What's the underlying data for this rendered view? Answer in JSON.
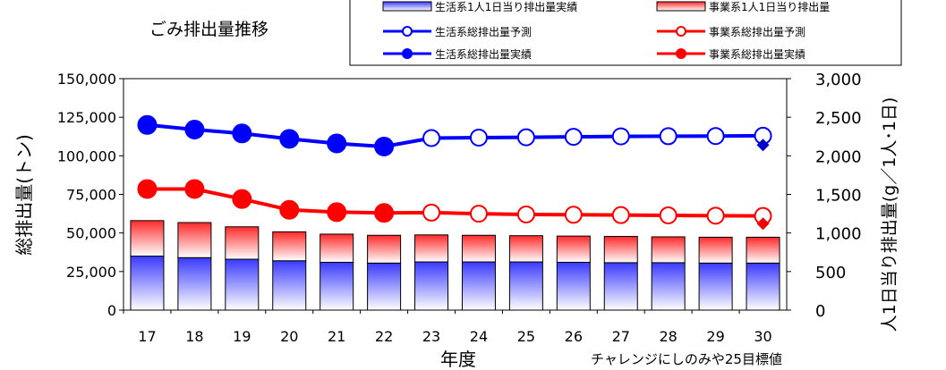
{
  "chart_data": {
    "type": "bar",
    "title": "ごみ排出量推移",
    "xlabel": "年度",
    "ylabel": "総排出量(トン)",
    "y2label": "人1日当り排出量(g／1人･1日)",
    "annotation": "チャレンジにしのみや25目標値",
    "categories": [
      "17",
      "18",
      "19",
      "20",
      "21",
      "22",
      "23",
      "24",
      "25",
      "26",
      "27",
      "28",
      "29",
      "30"
    ],
    "ylim": [
      0,
      150000
    ],
    "y2lim": [
      0,
      3000
    ],
    "yticks": [
      "150,000",
      "125,000",
      "100,000",
      "75,000",
      "50,000",
      "25,000",
      "0"
    ],
    "y2ticks": [
      "3,000",
      "2,500",
      "2,000",
      "1,500",
      "1,000",
      "500",
      "0"
    ],
    "series": [
      {
        "name": "生活系1人1日当り排出量実績",
        "kind": "bar",
        "axis": "right",
        "color": "#3333ff",
        "values": [
          700,
          680,
          660,
          640,
          620,
          610,
          625,
          625,
          625,
          620,
          615,
          615,
          610,
          610
        ]
      },
      {
        "name": "事業系1人1日当り排出量",
        "kind": "bar",
        "axis": "right",
        "color": "#ff3333",
        "values": [
          460,
          455,
          420,
          375,
          365,
          360,
          350,
          345,
          340,
          340,
          340,
          335,
          335,
          335
        ]
      },
      {
        "name": "生活系総排出量予測",
        "kind": "line",
        "marker": "open",
        "axis": "left",
        "color": "#0000ff",
        "values": [
          null,
          null,
          null,
          null,
          null,
          106000,
          111500,
          111800,
          112000,
          112300,
          112600,
          112700,
          112800,
          113000
        ]
      },
      {
        "name": "事業系総排出量予測",
        "kind": "line",
        "marker": "open",
        "axis": "left",
        "color": "#ff0000",
        "values": [
          null,
          null,
          null,
          null,
          null,
          63000,
          63200,
          62500,
          62000,
          61800,
          61600,
          61400,
          61200,
          61000
        ]
      },
      {
        "name": "生活系総排出量実績",
        "kind": "line",
        "marker": "filled",
        "axis": "left",
        "color": "#0000ff",
        "values": [
          120000,
          117000,
          114500,
          111000,
          108000,
          106000,
          null,
          null,
          null,
          null,
          null,
          null,
          null,
          null
        ]
      },
      {
        "name": "事業系総排出量実績",
        "kind": "line",
        "marker": "filled",
        "axis": "left",
        "color": "#ff0000",
        "values": [
          78500,
          78500,
          72000,
          65000,
          63500,
          63000,
          null,
          null,
          null,
          null,
          null,
          null,
          null,
          null
        ]
      }
    ],
    "targets": [
      {
        "series": "生活系総排出量実績",
        "x": "30",
        "value": 107000,
        "color": "#0000cc"
      },
      {
        "series": "事業系総排出量実績",
        "x": "30",
        "value": 56000,
        "color": "#ee0000"
      }
    ],
    "legend_position": "top-right",
    "grid": false
  }
}
